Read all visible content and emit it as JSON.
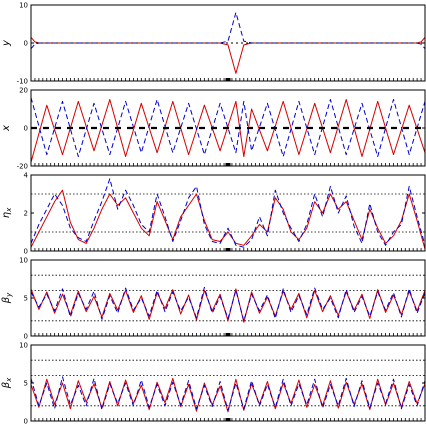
{
  "chart_data": [
    {
      "type": "line",
      "ylabel": "y",
      "ylim": [
        -10,
        10
      ],
      "yticks": [
        -10,
        0,
        10
      ],
      "ref_lines": [],
      "series": [
        {
          "color": "#d40000",
          "dash": "solid",
          "x": [
            0,
            0.5,
            1,
            2,
            3,
            4,
            5,
            6,
            7,
            8,
            9,
            10,
            11,
            12,
            13,
            14,
            15,
            16,
            17,
            18,
            19,
            20,
            21,
            22,
            23,
            24,
            25,
            26,
            27,
            28,
            29,
            30,
            31,
            32,
            33,
            34,
            35,
            36,
            37,
            38,
            39,
            40,
            41,
            42,
            43,
            44,
            45,
            46,
            47,
            48,
            49,
            49.5,
            50
          ],
          "y": [
            1.5,
            0.3,
            0,
            0,
            0,
            0,
            0,
            0,
            0,
            0,
            0,
            0,
            0,
            0,
            0,
            0,
            0,
            0,
            0,
            0,
            0,
            0,
            0,
            0,
            0,
            0,
            -0.5,
            -8,
            -0.5,
            0,
            0,
            0,
            0,
            0,
            0,
            0,
            0,
            0,
            0,
            0,
            0,
            0,
            0,
            0,
            0,
            0,
            0,
            0,
            0,
            0,
            0,
            0.3,
            1.5
          ]
        },
        {
          "color": "#0000cc",
          "dash": "dash",
          "x": [
            0,
            0.5,
            1,
            2,
            3,
            4,
            5,
            6,
            7,
            8,
            9,
            10,
            11,
            12,
            13,
            14,
            15,
            16,
            17,
            18,
            19,
            20,
            21,
            22,
            23,
            24,
            25,
            26,
            27,
            28,
            29,
            30,
            31,
            32,
            33,
            34,
            35,
            36,
            37,
            38,
            39,
            40,
            41,
            42,
            43,
            44,
            45,
            46,
            47,
            48,
            49,
            49.5,
            50
          ],
          "y": [
            -1.5,
            -0.3,
            0,
            0,
            0,
            0,
            0,
            0,
            0,
            0,
            0,
            0,
            0,
            0,
            0,
            0,
            0,
            0,
            0,
            0,
            0,
            0,
            0,
            0,
            0,
            0,
            0.5,
            8,
            0.5,
            0,
            0,
            0,
            0,
            0,
            0,
            0,
            0,
            0,
            0,
            0,
            0,
            0,
            0,
            0,
            0,
            0,
            0,
            0,
            0,
            0,
            0,
            -0.3,
            -1.5
          ]
        },
        {
          "color": "#000000",
          "dash": "dot",
          "x": [
            0,
            50
          ],
          "y": [
            0,
            0
          ]
        }
      ]
    },
    {
      "type": "line",
      "ylabel": "x",
      "ylim": [
        -20,
        20
      ],
      "yticks": [
        -20,
        0,
        20
      ],
      "ref_lines": [],
      "series": [
        {
          "color": "#d40000",
          "dash": "solid",
          "x": [
            0,
            2,
            4,
            6,
            8,
            10,
            12,
            14,
            16,
            18,
            20,
            22,
            24,
            26,
            27,
            28,
            30,
            32,
            34,
            36,
            38,
            40,
            42,
            44,
            46,
            48,
            50
          ],
          "y": [
            -18,
            12,
            -14,
            14,
            -12,
            15,
            -15,
            13,
            -13,
            14,
            -14,
            12,
            -12,
            14,
            -15,
            10,
            -12,
            14,
            -14,
            13,
            -13,
            15,
            -15,
            14,
            -14,
            12,
            -13
          ]
        },
        {
          "color": "#0000cc",
          "dash": "dash",
          "x": [
            0,
            2,
            4,
            6,
            8,
            10,
            12,
            14,
            16,
            18,
            20,
            22,
            24,
            26,
            27,
            28,
            30,
            32,
            34,
            36,
            38,
            40,
            42,
            44,
            46,
            48,
            50
          ],
          "y": [
            16,
            -14,
            14,
            -15,
            13,
            -14,
            14,
            -13,
            15,
            -13,
            13,
            -14,
            13,
            -13,
            14,
            -12,
            13,
            -15,
            14,
            -14,
            15,
            -14,
            13,
            -15,
            15,
            -14,
            14
          ]
        },
        {
          "color": "#000000",
          "dash": "dash-thick",
          "x": [
            0,
            50
          ],
          "y": [
            0,
            0
          ]
        }
      ]
    },
    {
      "type": "line",
      "ylabel": "ηx",
      "ylim": [
        0,
        4
      ],
      "yticks": [
        0,
        2,
        4
      ],
      "ref_lines": [
        1,
        3
      ],
      "series": [
        {
          "color": "#d40000",
          "dash": "solid",
          "x": [
            0,
            1,
            2,
            3,
            4,
            5,
            6,
            7,
            8,
            9,
            10,
            11,
            12,
            13,
            14,
            15,
            16,
            17,
            18,
            19,
            20,
            21,
            22,
            23,
            24,
            25,
            26,
            27,
            28,
            29,
            30,
            31,
            32,
            33,
            34,
            35,
            36,
            37,
            38,
            39,
            40,
            41,
            42,
            43,
            44,
            45,
            46,
            47,
            48,
            49,
            50
          ],
          "y": [
            0.2,
            1.0,
            1.8,
            2.6,
            3.2,
            1.5,
            0.6,
            0.4,
            1.2,
            2.2,
            3.0,
            2.4,
            2.8,
            2.0,
            1.2,
            0.8,
            2.6,
            1.6,
            0.6,
            1.8,
            2.4,
            3.0,
            1.6,
            0.6,
            0.5,
            1.0,
            0.4,
            0.3,
            0.8,
            1.4,
            1.0,
            2.8,
            2.2,
            1.0,
            0.6,
            1.2,
            2.6,
            2.0,
            3.0,
            2.2,
            2.6,
            1.6,
            0.6,
            2.2,
            1.2,
            0.4,
            0.8,
            1.6,
            3.0,
            1.6,
            0.1
          ]
        },
        {
          "color": "#0000cc",
          "dash": "dash",
          "x": [
            0,
            1,
            2,
            3,
            4,
            5,
            6,
            7,
            8,
            9,
            10,
            11,
            12,
            13,
            14,
            15,
            16,
            17,
            18,
            19,
            20,
            21,
            22,
            23,
            24,
            25,
            26,
            27,
            28,
            29,
            30,
            31,
            32,
            33,
            34,
            35,
            36,
            37,
            38,
            39,
            40,
            41,
            42,
            43,
            44,
            45,
            46,
            47,
            48,
            49,
            50
          ],
          "y": [
            0.4,
            1.4,
            2.2,
            3.0,
            2.4,
            1.2,
            0.7,
            0.5,
            1.6,
            2.6,
            3.8,
            2.2,
            3.2,
            2.4,
            1.4,
            1.0,
            3.0,
            1.8,
            0.5,
            1.6,
            2.8,
            3.4,
            1.4,
            0.5,
            0.4,
            1.2,
            0.3,
            0.2,
            0.6,
            1.8,
            0.8,
            3.2,
            2.0,
            1.2,
            0.5,
            1.4,
            3.0,
            1.8,
            3.4,
            2.0,
            2.9,
            1.3,
            0.4,
            2.5,
            1.0,
            0.3,
            1.0,
            1.4,
            3.4,
            1.8,
            0.3
          ]
        }
      ]
    },
    {
      "type": "line",
      "ylabel": "βy",
      "ylim": [
        0,
        10
      ],
      "yticks": [
        0,
        5,
        10
      ],
      "ref_lines": [
        2,
        6,
        8
      ],
      "series": [
        {
          "color": "#d40000",
          "dash": "solid",
          "x": [
            0,
            1,
            2,
            3,
            4,
            5,
            6,
            7,
            8,
            9,
            10,
            11,
            12,
            13,
            14,
            15,
            16,
            17,
            18,
            19,
            20,
            21,
            22,
            23,
            24,
            25,
            26,
            27,
            28,
            29,
            30,
            31,
            32,
            33,
            34,
            35,
            36,
            37,
            38,
            39,
            40,
            41,
            42,
            43,
            44,
            45,
            46,
            47,
            48,
            49,
            50
          ],
          "y": [
            6.2,
            3.5,
            5.8,
            3.0,
            5.5,
            2.8,
            5.9,
            3.2,
            5.2,
            2.5,
            5.6,
            3.4,
            6.0,
            3.1,
            5.3,
            2.2,
            5.7,
            3.6,
            6.1,
            2.9,
            5.4,
            2.1,
            6.0,
            3.3,
            5.5,
            2.0,
            6.2,
            1.8,
            5.8,
            3.0,
            5.1,
            2.6,
            5.9,
            3.5,
            5.6,
            2.4,
            6.0,
            3.2,
            5.3,
            2.7,
            5.8,
            3.4,
            5.5,
            2.3,
            6.1,
            3.1,
            5.4,
            2.8,
            5.9,
            3.3,
            6.0
          ]
        },
        {
          "color": "#0000cc",
          "dash": "dash",
          "x": [
            0,
            1,
            2,
            3,
            4,
            5,
            6,
            7,
            8,
            9,
            10,
            11,
            12,
            13,
            14,
            15,
            16,
            17,
            18,
            19,
            20,
            21,
            22,
            23,
            24,
            25,
            26,
            27,
            28,
            29,
            30,
            31,
            32,
            33,
            34,
            35,
            36,
            37,
            38,
            39,
            40,
            41,
            42,
            43,
            44,
            45,
            46,
            47,
            48,
            49,
            50
          ],
          "y": [
            5.8,
            3.8,
            5.5,
            3.3,
            6.2,
            2.5,
            5.6,
            3.5,
            5.9,
            2.2,
            5.3,
            3.0,
            6.3,
            3.4,
            5.0,
            2.6,
            6.0,
            3.2,
            5.8,
            3.3,
            5.1,
            2.4,
            6.4,
            3.0,
            5.2,
            2.3,
            6.0,
            2.0,
            5.5,
            3.3,
            5.4,
            2.3,
            6.2,
            3.1,
            5.3,
            2.8,
            6.3,
            3.5,
            5.0,
            2.4,
            6.1,
            3.1,
            5.2,
            2.6,
            5.8,
            3.4,
            5.7,
            2.5,
            6.2,
            3.0,
            5.7
          ]
        }
      ]
    },
    {
      "type": "line",
      "ylabel": "βx",
      "ylim": [
        0,
        10
      ],
      "yticks": [
        0,
        5,
        10
      ],
      "ref_lines": [
        2,
        6,
        8
      ],
      "series": [
        {
          "color": "#d40000",
          "dash": "solid",
          "x": [
            0,
            1,
            2,
            3,
            4,
            5,
            6,
            7,
            8,
            9,
            10,
            11,
            12,
            13,
            14,
            15,
            16,
            17,
            18,
            19,
            20,
            21,
            22,
            23,
            24,
            25,
            26,
            27,
            28,
            29,
            30,
            31,
            32,
            33,
            34,
            35,
            36,
            37,
            38,
            39,
            40,
            41,
            42,
            43,
            44,
            45,
            46,
            47,
            48,
            49,
            50
          ],
          "y": [
            4.8,
            1.8,
            5.5,
            2.2,
            5.0,
            1.6,
            5.3,
            2.5,
            4.9,
            1.7,
            5.2,
            2.0,
            5.4,
            2.3,
            4.7,
            1.5,
            5.1,
            2.4,
            5.6,
            1.9,
            4.8,
            1.3,
            5.0,
            2.1,
            4.6,
            1.2,
            5.5,
            1.4,
            4.9,
            2.2,
            5.2,
            1.6,
            5.0,
            2.3,
            5.4,
            1.8,
            4.8,
            2.0,
            5.3,
            1.7,
            5.1,
            2.2,
            4.9,
            1.5,
            5.5,
            2.1,
            5.0,
            1.8,
            5.2,
            2.3,
            4.9
          ]
        },
        {
          "color": "#0000cc",
          "dash": "dash",
          "x": [
            0,
            1,
            2,
            3,
            4,
            5,
            6,
            7,
            8,
            9,
            10,
            11,
            12,
            13,
            14,
            15,
            16,
            17,
            18,
            19,
            20,
            21,
            22,
            23,
            24,
            25,
            26,
            27,
            28,
            29,
            30,
            31,
            32,
            33,
            34,
            35,
            36,
            37,
            38,
            39,
            40,
            41,
            42,
            43,
            44,
            45,
            46,
            47,
            48,
            49,
            50
          ],
          "y": [
            5.6,
            2.0,
            5.0,
            1.6,
            5.8,
            2.1,
            4.7,
            2.0,
            5.6,
            1.5,
            4.9,
            2.3,
            5.0,
            2.0,
            5.4,
            1.8,
            4.8,
            2.0,
            5.1,
            2.1,
            5.3,
            1.6,
            4.7,
            1.9,
            5.2,
            1.4,
            5.0,
            1.6,
            5.3,
            2.0,
            4.8,
            1.8,
            5.5,
            2.0,
            4.9,
            2.1,
            5.5,
            1.7,
            4.8,
            2.0,
            5.6,
            1.9,
            5.3,
            1.7,
            5.0,
            2.3,
            5.5,
            1.6,
            4.8,
            2.0,
            5.3
          ]
        }
      ]
    }
  ]
}
